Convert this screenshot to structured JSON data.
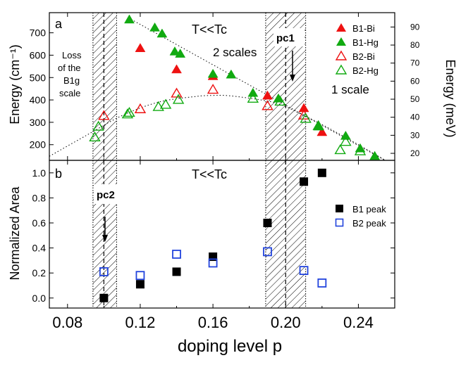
{
  "figure": {
    "xlabel": "doping level p",
    "x_ticks": [
      "0.08",
      "0.12",
      "0.16",
      "0.20",
      "0.24"
    ],
    "x_tick_values": [
      0.08,
      0.12,
      0.16,
      0.2,
      0.24
    ],
    "xlim": [
      0.07,
      0.26
    ]
  },
  "chart_data": [
    {
      "type": "scatter",
      "panel_label": "a",
      "title": "T<<Tc",
      "ylabel_left": "Energy (cm⁻¹)",
      "ylabel_right": "Energy (meV)",
      "ylim_left": [
        130,
        790
      ],
      "y_ticks_left": [
        200,
        300,
        400,
        500,
        600,
        700
      ],
      "y_ticks_right": [
        20,
        30,
        40,
        50,
        60,
        70,
        80,
        90
      ],
      "annotations": {
        "loss_line1": "Loss",
        "loss_line2": "of the",
        "loss_line3": "B1g",
        "loss_line4": "scale",
        "two_scales": "2 scales",
        "one_scale": "1 scale",
        "pc1": "pc1"
      },
      "shaded_regions": [
        [
          0.094,
          0.107
        ],
        [
          0.189,
          0.211
        ]
      ],
      "dashed_lines": [
        0.1,
        0.2
      ],
      "colors": {
        "red": "#ee1111",
        "green": "#11aa11"
      },
      "series": [
        {
          "name": "B1-Bi",
          "marker": "filled-triangle",
          "color": "#ee1111",
          "x": [
            0.12,
            0.14,
            0.16,
            0.19,
            0.21,
            0.22
          ],
          "y": [
            630,
            535,
            505,
            418,
            362,
            255
          ]
        },
        {
          "name": "B1-Hg",
          "marker": "filled-triangle",
          "color": "#11aa11",
          "x": [
            0.114,
            0.128,
            0.132,
            0.139,
            0.142,
            0.16,
            0.17,
            0.182,
            0.196,
            0.218,
            0.233,
            0.241,
            0.249
          ],
          "y": [
            758,
            722,
            695,
            615,
            605,
            515,
            512,
            430,
            405,
            280,
            238,
            182,
            148
          ]
        },
        {
          "name": "B2-Bi",
          "marker": "open-triangle",
          "color": "#ee1111",
          "x": [
            0.1,
            0.12,
            0.14,
            0.16,
            0.19,
            0.21
          ],
          "y": [
            328,
            358,
            428,
            445,
            372,
            330
          ]
        },
        {
          "name": "B2-Hg",
          "marker": "open-triangle",
          "color": "#11aa11",
          "x": [
            0.095,
            0.097,
            0.113,
            0.114,
            0.13,
            0.134,
            0.141,
            0.182,
            0.197,
            0.211,
            0.218,
            0.23,
            0.233,
            0.241
          ],
          "y": [
            232,
            280,
            335,
            342,
            368,
            378,
            400,
            405,
            392,
            315,
            283,
            175,
            212,
            170
          ]
        }
      ],
      "guide_curves": {
        "b1_line_x": [
          0.115,
          0.258
        ],
        "b1_line_y": [
          760,
          115
        ],
        "b2_curve_x": [
          0.07,
          0.09,
          0.11,
          0.13,
          0.15,
          0.16,
          0.17,
          0.19,
          0.2,
          0.21,
          0.22,
          0.24,
          0.258
        ],
        "b2_curve_y": [
          148,
          240,
          330,
          390,
          415,
          420,
          418,
          395,
          370,
          330,
          290,
          200,
          115
        ]
      }
    },
    {
      "type": "scatter",
      "panel_label": "b",
      "title": "T<<Tc",
      "ylabel": "Normalized Area",
      "ylim": [
        -0.08,
        1.1
      ],
      "y_ticks": [
        "0.0",
        "0.2",
        "0.4",
        "0.6",
        "0.8",
        "1.0"
      ],
      "y_tick_values": [
        0.0,
        0.2,
        0.4,
        0.6,
        0.8,
        1.0
      ],
      "annotations": {
        "pc2": "pc2"
      },
      "colors": {
        "black": "#000000",
        "blue": "#2244dd"
      },
      "series": [
        {
          "name": "B1 peak",
          "marker": "filled-square",
          "color": "#000000",
          "x": [
            0.1,
            0.12,
            0.14,
            0.16,
            0.19,
            0.21,
            0.22
          ],
          "y": [
            0.0,
            0.11,
            0.21,
            0.33,
            0.6,
            0.93,
            1.0
          ]
        },
        {
          "name": "B2 peak",
          "marker": "open-square",
          "color": "#2244dd",
          "x": [
            0.1,
            0.12,
            0.14,
            0.16,
            0.19,
            0.21,
            0.22
          ],
          "y": [
            0.21,
            0.18,
            0.35,
            0.28,
            0.37,
            0.22,
            0.12
          ]
        }
      ]
    }
  ]
}
